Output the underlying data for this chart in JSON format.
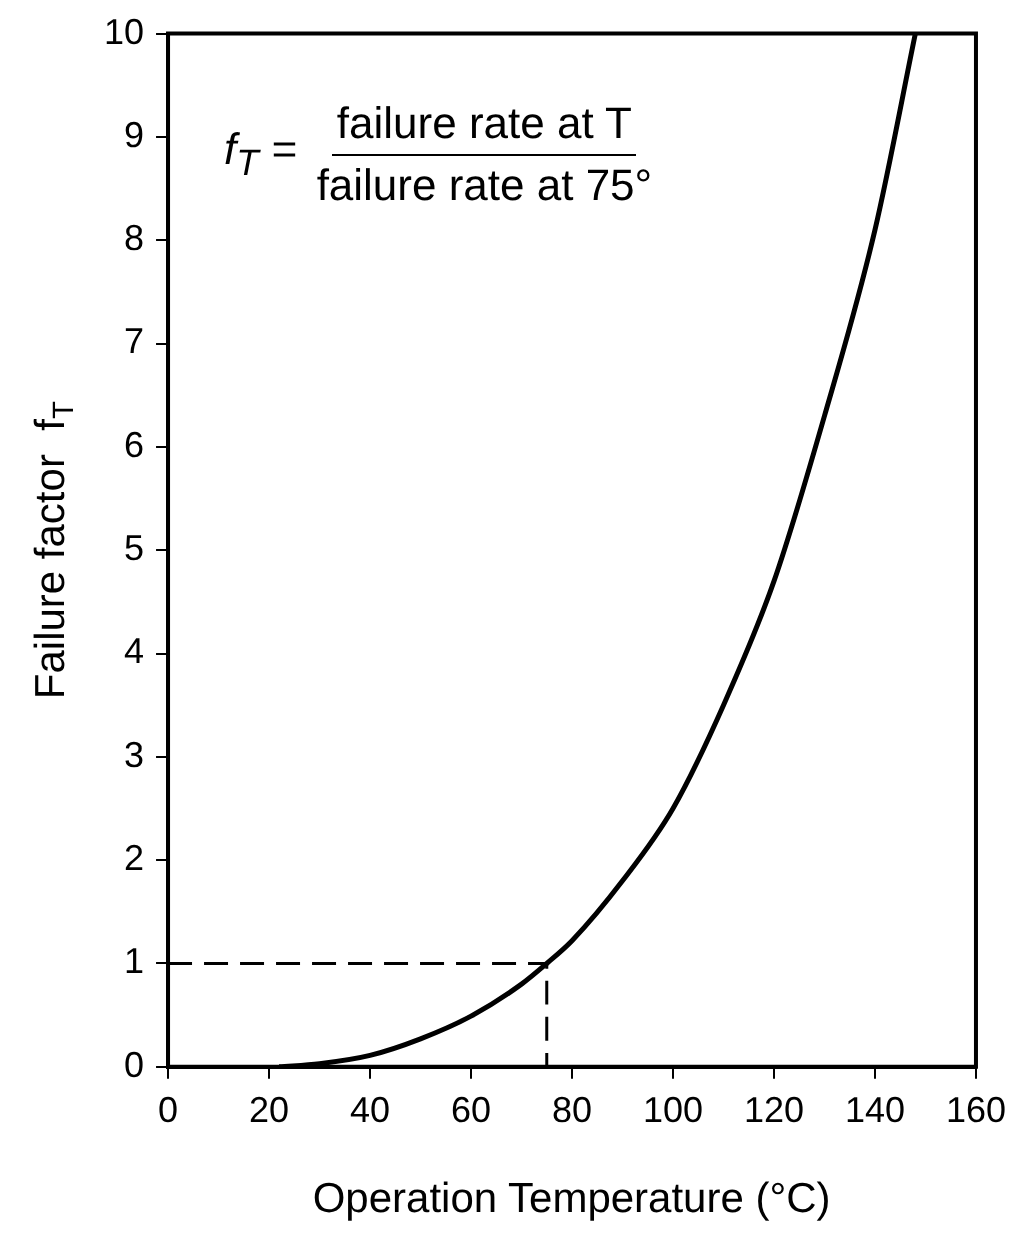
{
  "chart_data": {
    "type": "line",
    "xlabel": "Operation Temperature (°C)",
    "ylabel": "Failure factor  f$_{T}$",
    "annotations": [
      "f$_{T}$ =",
      "failure rate at T",
      "failure rate at 75°"
    ],
    "xlim": [
      0,
      160
    ],
    "xticks": [
      0,
      20,
      40,
      60,
      80,
      100,
      120,
      140,
      160
    ],
    "ylim": [
      0,
      10
    ],
    "yticks": [
      0,
      1,
      2,
      3,
      4,
      5,
      6,
      7,
      8,
      9,
      10
    ],
    "grid": false,
    "legend": false,
    "marker": "none",
    "series": [
      {
        "color": "#000000",
        "line_style": "solid",
        "x": [
          22,
          30,
          40,
          50,
          60,
          70,
          75,
          80,
          90,
          100,
          110,
          120,
          130,
          140,
          148
        ],
        "values": [
          0,
          0.03,
          0.11,
          0.27,
          0.49,
          0.8,
          1,
          1.22,
          1.8,
          2.5,
          3.5,
          4.7,
          6.3,
          8.1,
          10
        ]
      },
      {
        "color": "#000000",
        "line_style": "dashed",
        "x": [
          0,
          75,
          75
        ],
        "values": [
          1,
          1,
          0
        ]
      }
    ]
  }
}
